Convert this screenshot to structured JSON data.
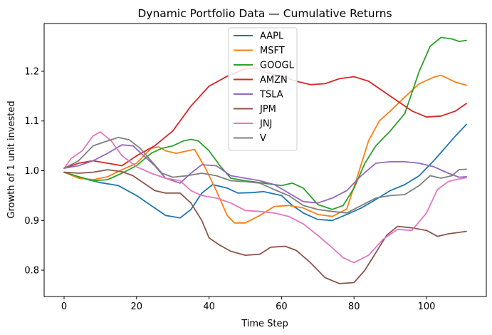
{
  "chart_data": {
    "type": "line",
    "title": "Dynamic Portfolio Data — Cumulative Returns",
    "xlabel": "Time Step",
    "ylabel": "Growth of 1 unit invested",
    "xlim": [
      -5.5,
      116.5
    ],
    "ylim": [
      0.747,
      1.296
    ],
    "xticks": [
      0,
      20,
      40,
      60,
      80,
      100
    ],
    "yticks": [
      0.8,
      0.9,
      1.0,
      1.1,
      1.2
    ],
    "grid": false,
    "legend_position": "top-center",
    "series": [
      {
        "name": "AAPL",
        "color": "#1f77b4",
        "points": [
          [
            0,
            0.997
          ],
          [
            5,
            0.985
          ],
          [
            10,
            0.976
          ],
          [
            15,
            0.97
          ],
          [
            20,
            0.95
          ],
          [
            25,
            0.925
          ],
          [
            28,
            0.91
          ],
          [
            32,
            0.905
          ],
          [
            35,
            0.922
          ],
          [
            38,
            0.955
          ],
          [
            41,
            0.972
          ],
          [
            45,
            0.965
          ],
          [
            48,
            0.955
          ],
          [
            52,
            0.956
          ],
          [
            55,
            0.958
          ],
          [
            60,
            0.95
          ],
          [
            63,
            0.93
          ],
          [
            66,
            0.915
          ],
          [
            70,
            0.902
          ],
          [
            74,
            0.9
          ],
          [
            78,
            0.912
          ],
          [
            82,
            0.925
          ],
          [
            86,
            0.942
          ],
          [
            90,
            0.96
          ],
          [
            94,
            0.972
          ],
          [
            98,
            0.99
          ],
          [
            102,
            1.02
          ],
          [
            105,
            1.045
          ],
          [
            108,
            1.07
          ],
          [
            111,
            1.093
          ]
        ]
      },
      {
        "name": "MSFT",
        "color": "#ff7f0e",
        "points": [
          [
            0,
            0.997
          ],
          [
            4,
            0.985
          ],
          [
            8,
            0.982
          ],
          [
            12,
            0.988
          ],
          [
            16,
            1.002
          ],
          [
            20,
            1.015
          ],
          [
            24,
            1.045
          ],
          [
            26,
            1.048
          ],
          [
            28,
            1.04
          ],
          [
            31,
            1.035
          ],
          [
            34,
            1.04
          ],
          [
            36,
            1.043
          ],
          [
            39,
            1.005
          ],
          [
            42,
            0.96
          ],
          [
            45,
            0.91
          ],
          [
            47,
            0.895
          ],
          [
            50,
            0.895
          ],
          [
            54,
            0.91
          ],
          [
            58,
            0.928
          ],
          [
            62,
            0.93
          ],
          [
            66,
            0.925
          ],
          [
            70,
            0.912
          ],
          [
            74,
            0.908
          ],
          [
            78,
            0.923
          ],
          [
            81,
            0.99
          ],
          [
            84,
            1.06
          ],
          [
            87,
            1.1
          ],
          [
            90,
            1.12
          ],
          [
            94,
            1.148
          ],
          [
            98,
            1.175
          ],
          [
            102,
            1.188
          ],
          [
            104,
            1.192
          ],
          [
            106,
            1.185
          ],
          [
            108,
            1.178
          ],
          [
            111,
            1.172
          ]
        ]
      },
      {
        "name": "GOOGL",
        "color": "#2ca02c",
        "points": [
          [
            0,
            0.997
          ],
          [
            4,
            0.988
          ],
          [
            8,
            0.98
          ],
          [
            12,
            0.982
          ],
          [
            16,
            0.995
          ],
          [
            20,
            1.01
          ],
          [
            24,
            1.035
          ],
          [
            27,
            1.045
          ],
          [
            30,
            1.05
          ],
          [
            33,
            1.06
          ],
          [
            35,
            1.063
          ],
          [
            37,
            1.06
          ],
          [
            40,
            1.04
          ],
          [
            43,
            1.01
          ],
          [
            46,
            0.985
          ],
          [
            50,
            0.98
          ],
          [
            55,
            0.975
          ],
          [
            60,
            0.97
          ],
          [
            63,
            0.975
          ],
          [
            66,
            0.965
          ],
          [
            70,
            0.932
          ],
          [
            74,
            0.922
          ],
          [
            77,
            0.93
          ],
          [
            80,
            0.965
          ],
          [
            83,
            1.015
          ],
          [
            86,
            1.05
          ],
          [
            90,
            1.08
          ],
          [
            94,
            1.115
          ],
          [
            98,
            1.2
          ],
          [
            101,
            1.25
          ],
          [
            104,
            1.268
          ],
          [
            107,
            1.265
          ],
          [
            109,
            1.26
          ],
          [
            111,
            1.262
          ]
        ]
      },
      {
        "name": "AMZN",
        "color": "#d62728",
        "points": [
          [
            0,
            1.005
          ],
          [
            4,
            1.015
          ],
          [
            8,
            1.02
          ],
          [
            12,
            1.015
          ],
          [
            16,
            1.01
          ],
          [
            20,
            1.03
          ],
          [
            25,
            1.05
          ],
          [
            30,
            1.08
          ],
          [
            35,
            1.13
          ],
          [
            40,
            1.17
          ],
          [
            45,
            1.19
          ],
          [
            50,
            1.205
          ],
          [
            53,
            1.207
          ],
          [
            56,
            1.197
          ],
          [
            60,
            1.19
          ],
          [
            64,
            1.18
          ],
          [
            68,
            1.173
          ],
          [
            72,
            1.175
          ],
          [
            76,
            1.185
          ],
          [
            80,
            1.189
          ],
          [
            84,
            1.18
          ],
          [
            88,
            1.16
          ],
          [
            92,
            1.14
          ],
          [
            96,
            1.12
          ],
          [
            100,
            1.108
          ],
          [
            104,
            1.11
          ],
          [
            108,
            1.12
          ],
          [
            111,
            1.135
          ]
        ]
      },
      {
        "name": "TSLA",
        "color": "#9467bd",
        "points": [
          [
            0,
            1.005
          ],
          [
            4,
            1.01
          ],
          [
            8,
            1.02
          ],
          [
            12,
            1.035
          ],
          [
            16,
            1.052
          ],
          [
            19,
            1.05
          ],
          [
            22,
            1.03
          ],
          [
            25,
            1.01
          ],
          [
            28,
            0.985
          ],
          [
            32,
            0.975
          ],
          [
            35,
            0.995
          ],
          [
            38,
            1.012
          ],
          [
            42,
            1.01
          ],
          [
            46,
            0.99
          ],
          [
            50,
            0.985
          ],
          [
            54,
            0.98
          ],
          [
            58,
            0.972
          ],
          [
            62,
            0.955
          ],
          [
            66,
            0.938
          ],
          [
            70,
            0.935
          ],
          [
            74,
            0.945
          ],
          [
            78,
            0.96
          ],
          [
            82,
            0.99
          ],
          [
            86,
            1.015
          ],
          [
            90,
            1.018
          ],
          [
            94,
            1.018
          ],
          [
            98,
            1.015
          ],
          [
            102,
            1.008
          ],
          [
            106,
            0.995
          ],
          [
            109,
            0.987
          ],
          [
            111,
            0.988
          ]
        ]
      },
      {
        "name": "JPM",
        "color": "#8c564b",
        "points": [
          [
            0,
            0.997
          ],
          [
            4,
            0.995
          ],
          [
            8,
            0.997
          ],
          [
            12,
            1.002
          ],
          [
            16,
            0.998
          ],
          [
            19,
            0.99
          ],
          [
            22,
            0.975
          ],
          [
            25,
            0.96
          ],
          [
            28,
            0.955
          ],
          [
            32,
            0.955
          ],
          [
            35,
            0.935
          ],
          [
            38,
            0.9
          ],
          [
            40,
            0.865
          ],
          [
            43,
            0.85
          ],
          [
            46,
            0.838
          ],
          [
            50,
            0.83
          ],
          [
            54,
            0.832
          ],
          [
            57,
            0.846
          ],
          [
            61,
            0.848
          ],
          [
            64,
            0.84
          ],
          [
            68,
            0.815
          ],
          [
            72,
            0.785
          ],
          [
            76,
            0.773
          ],
          [
            80,
            0.775
          ],
          [
            83,
            0.8
          ],
          [
            86,
            0.835
          ],
          [
            89,
            0.87
          ],
          [
            92,
            0.888
          ],
          [
            96,
            0.885
          ],
          [
            100,
            0.88
          ],
          [
            103,
            0.868
          ],
          [
            106,
            0.873
          ],
          [
            111,
            0.878
          ]
        ]
      },
      {
        "name": "JNJ",
        "color": "#e377c2",
        "points": [
          [
            0,
            1.005
          ],
          [
            2,
            1.025
          ],
          [
            5,
            1.04
          ],
          [
            8,
            1.07
          ],
          [
            10,
            1.078
          ],
          [
            13,
            1.06
          ],
          [
            16,
            1.03
          ],
          [
            20,
            1.008
          ],
          [
            24,
            0.995
          ],
          [
            28,
            0.985
          ],
          [
            32,
            0.98
          ],
          [
            35,
            0.96
          ],
          [
            38,
            0.95
          ],
          [
            42,
            0.945
          ],
          [
            46,
            0.935
          ],
          [
            50,
            0.92
          ],
          [
            54,
            0.918
          ],
          [
            58,
            0.915
          ],
          [
            62,
            0.908
          ],
          [
            66,
            0.893
          ],
          [
            70,
            0.87
          ],
          [
            74,
            0.845
          ],
          [
            77,
            0.825
          ],
          [
            80,
            0.815
          ],
          [
            84,
            0.83
          ],
          [
            88,
            0.862
          ],
          [
            92,
            0.882
          ],
          [
            96,
            0.88
          ],
          [
            100,
            0.915
          ],
          [
            103,
            0.962
          ],
          [
            106,
            0.978
          ],
          [
            108,
            0.982
          ],
          [
            111,
            0.986
          ]
        ]
      },
      {
        "name": "V",
        "color": "#7f7f7f",
        "points": [
          [
            0,
            1.005
          ],
          [
            4,
            1.02
          ],
          [
            8,
            1.05
          ],
          [
            12,
            1.06
          ],
          [
            15,
            1.067
          ],
          [
            18,
            1.062
          ],
          [
            21,
            1.045
          ],
          [
            24,
            1.02
          ],
          [
            27,
            0.995
          ],
          [
            30,
            0.987
          ],
          [
            34,
            0.99
          ],
          [
            38,
            0.995
          ],
          [
            42,
            0.99
          ],
          [
            46,
            0.98
          ],
          [
            50,
            0.978
          ],
          [
            54,
            0.975
          ],
          [
            58,
            0.962
          ],
          [
            62,
            0.95
          ],
          [
            66,
            0.93
          ],
          [
            70,
            0.922
          ],
          [
            74,
            0.918
          ],
          [
            78,
            0.915
          ],
          [
            82,
            0.93
          ],
          [
            86,
            0.945
          ],
          [
            90,
            0.95
          ],
          [
            94,
            0.952
          ],
          [
            98,
            0.97
          ],
          [
            101,
            0.99
          ],
          [
            104,
            0.985
          ],
          [
            107,
            0.99
          ],
          [
            109,
            1.002
          ],
          [
            111,
            1.003
          ]
        ]
      }
    ]
  }
}
